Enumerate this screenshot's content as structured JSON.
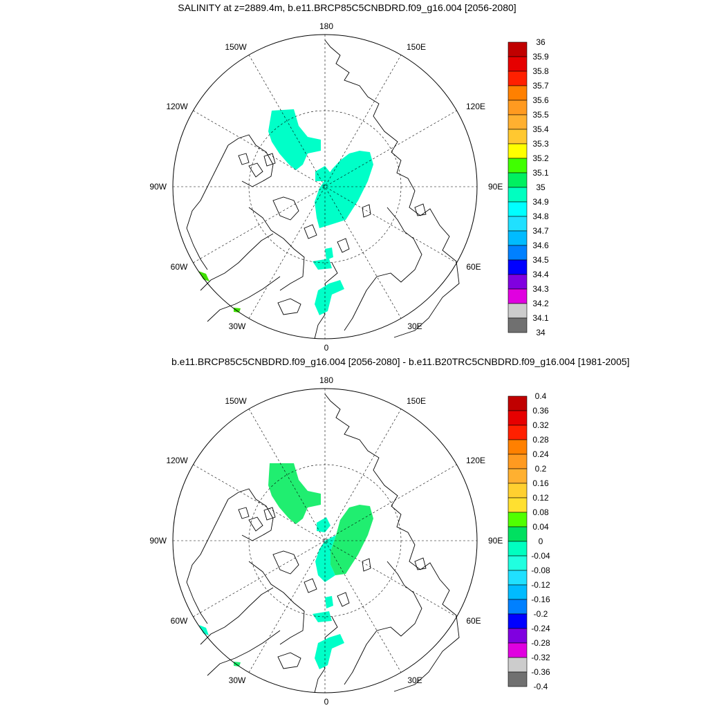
{
  "panels": [
    {
      "title": "SALINITY at z=2889.4m, b.e11.BRCP85C5CNBDRD.f09_g16.004 [2056-2080]",
      "lon_labels": {
        "top": "180",
        "bottom": "0",
        "left": "90W",
        "right": "90E",
        "tl1": "150W",
        "tl2": "120W",
        "tr1": "150E",
        "tr2": "120E",
        "bl1": "60W",
        "bl2": "30W",
        "br1": "60E",
        "br2": "30E"
      },
      "colorbar": {
        "labels": [
          "36",
          "35.9",
          "35.8",
          "35.7",
          "35.6",
          "35.5",
          "35.4",
          "35.3",
          "35.2",
          "35.1",
          "35",
          "34.9",
          "34.8",
          "34.7",
          "34.6",
          "34.5",
          "34.4",
          "34.3",
          "34.2",
          "34.1",
          "34"
        ],
        "colors": [
          "#c00000",
          "#e60000",
          "#ff2000",
          "#ff8000",
          "#ff9a20",
          "#ffb030",
          "#ffc830",
          "#ffff00",
          "#40ff00",
          "#00f060",
          "#00ffc0",
          "#00ffff",
          "#20e0ff",
          "#00bbff",
          "#0080ff",
          "#0000ff",
          "#8000e0",
          "#e000e0",
          "#cccccc",
          "#707070"
        ]
      }
    },
    {
      "title": "b.e11.BRCP85C5CNBDRD.f09_g16.004 [2056-2080] - b.e11.B20TRC5CNBDRD.f09_g16.004 [1981-2005]",
      "lon_labels": {
        "top": "180",
        "bottom": "0",
        "left": "90W",
        "right": "90E",
        "tl1": "150W",
        "tl2": "120W",
        "tr1": "150E",
        "tr2": "120E",
        "bl1": "60W",
        "bl2": "30W",
        "br1": "60E",
        "br2": "30E"
      },
      "colorbar": {
        "labels": [
          "0.4",
          "0.36",
          "0.32",
          "0.28",
          "0.24",
          "0.2",
          "0.16",
          "0.12",
          "0.08",
          "0.04",
          "0",
          "-0.04",
          "-0.08",
          "-0.12",
          "-0.16",
          "-0.2",
          "-0.24",
          "-0.28",
          "-0.32",
          "-0.36",
          "-0.4"
        ],
        "colors": [
          "#c00000",
          "#e60000",
          "#ff2000",
          "#ff8000",
          "#ff9a20",
          "#ffb030",
          "#ffd030",
          "#ffe030",
          "#50ff00",
          "#00e060",
          "#00ffc0",
          "#20ffe0",
          "#20e0ff",
          "#00bbff",
          "#0080ff",
          "#0000ff",
          "#8000e0",
          "#e000e0",
          "#cccccc",
          "#707070"
        ]
      }
    }
  ]
}
